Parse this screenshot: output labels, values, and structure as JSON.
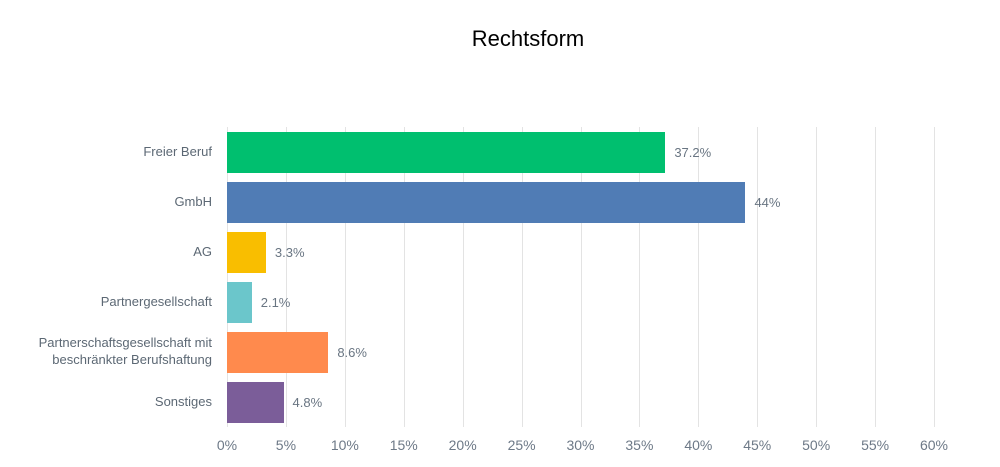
{
  "chart_data": {
    "type": "bar",
    "orientation": "horizontal",
    "title": "Rechtsform",
    "categories": [
      "Freier Beruf",
      "GmbH",
      "AG",
      "Partnergesellschaft",
      "Partnerschaftsgesellschaft mit beschränkter Berufshaftung",
      "Sonstiges"
    ],
    "values": [
      37.2,
      44,
      3.3,
      2.1,
      8.6,
      4.8
    ],
    "value_labels": [
      "37.2%",
      "44%",
      "3.3%",
      "2.1%",
      "8.6%",
      "4.8%"
    ],
    "bar_colors": [
      "#00BF6F",
      "#507CB5",
      "#F9BE00",
      "#6BC6CB",
      "#FF8A4D",
      "#7B5D99"
    ],
    "xlim": [
      0,
      60
    ],
    "x_ticks": [
      "0%",
      "5%",
      "10%",
      "15%",
      "20%",
      "25%",
      "30%",
      "35%",
      "40%",
      "45%",
      "50%",
      "55%",
      "60%"
    ],
    "grid": true,
    "legend_position": "none",
    "xlabel": "",
    "ylabel": "",
    "style": {
      "title_color": "#000000",
      "category_label_color": "#5C6874",
      "value_label_color": "#697582",
      "axis_tick_color": "#6D7987",
      "gridline_color": "#E3E3E3",
      "background_color": "#FFFFFF"
    }
  }
}
